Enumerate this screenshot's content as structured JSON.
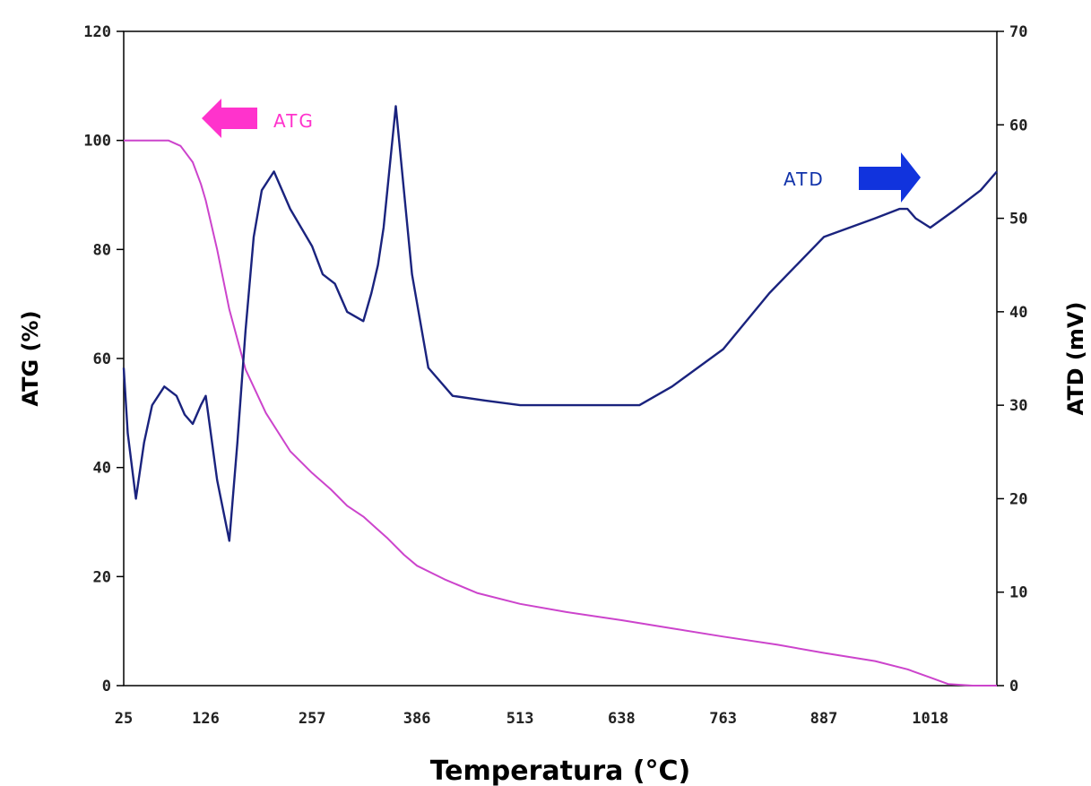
{
  "chart_data": {
    "type": "line",
    "xlabel": "Temperatura (°C)",
    "ylabel_left": "ATG (%)",
    "ylabel_right": "ATD (mV)",
    "x_ticks": [
      "25",
      "126",
      "257",
      "386",
      "513",
      "638",
      "763",
      "887",
      "1018"
    ],
    "x_tick_values": [
      25,
      126,
      257,
      386,
      513,
      638,
      763,
      887,
      1018
    ],
    "xlim": [
      25,
      1100
    ],
    "ylim_left": [
      0,
      120
    ],
    "y_ticks_left": [
      "0",
      "20",
      "40",
      "60",
      "80",
      "100",
      "120"
    ],
    "ylim_right": [
      0,
      70
    ],
    "y_ticks_right": [
      "0",
      "10",
      "20",
      "30",
      "40",
      "50",
      "60",
      "70"
    ],
    "grid": false,
    "legend": [
      {
        "label": "ATG",
        "color": "#ff33cc",
        "arrow": "left"
      },
      {
        "label": "ATD",
        "color": "#1133dd",
        "arrow": "right"
      }
    ],
    "series": [
      {
        "name": "ATG",
        "axis": "left",
        "color": "#cc44cc",
        "x": [
          25,
          60,
          80,
          95,
          110,
          120,
          126,
          140,
          155,
          175,
          200,
          230,
          257,
          280,
          300,
          320,
          335,
          350,
          370,
          386,
          420,
          460,
          513,
          570,
          638,
          700,
          763,
          830,
          887,
          950,
          990,
          1018,
          1040,
          1070,
          1100
        ],
        "y": [
          100,
          100,
          100,
          99,
          96,
          92,
          89,
          80,
          69,
          58,
          50,
          43,
          39,
          36,
          33,
          31,
          29,
          27,
          24,
          22,
          19.5,
          17,
          15,
          13.5,
          12,
          10.5,
          9,
          7.5,
          6,
          4.5,
          3,
          1.5,
          0.3,
          0,
          0
        ]
      },
      {
        "name": "ATD",
        "axis": "right",
        "color": "#1a237e",
        "x": [
          25,
          30,
          40,
          50,
          60,
          75,
          90,
          100,
          110,
          120,
          126,
          140,
          155,
          165,
          175,
          185,
          195,
          210,
          230,
          257,
          270,
          285,
          300,
          320,
          330,
          338,
          345,
          360,
          380,
          400,
          430,
          470,
          513,
          560,
          600,
          638,
          660,
          700,
          763,
          820,
          887,
          950,
          980,
          990,
          1000,
          1018,
          1050,
          1080,
          1100
        ],
        "y": [
          34,
          27,
          20,
          26,
          30,
          32,
          31,
          29,
          28,
          30,
          31,
          22,
          15.5,
          26,
          38,
          48,
          53,
          55,
          51,
          47,
          44,
          43,
          40,
          39,
          42,
          45,
          49,
          62,
          44,
          34,
          31,
          30.5,
          30,
          30,
          30,
          30,
          30,
          32,
          36,
          42,
          48,
          50,
          51,
          51,
          50,
          49,
          51,
          53,
          55
        ]
      }
    ]
  }
}
